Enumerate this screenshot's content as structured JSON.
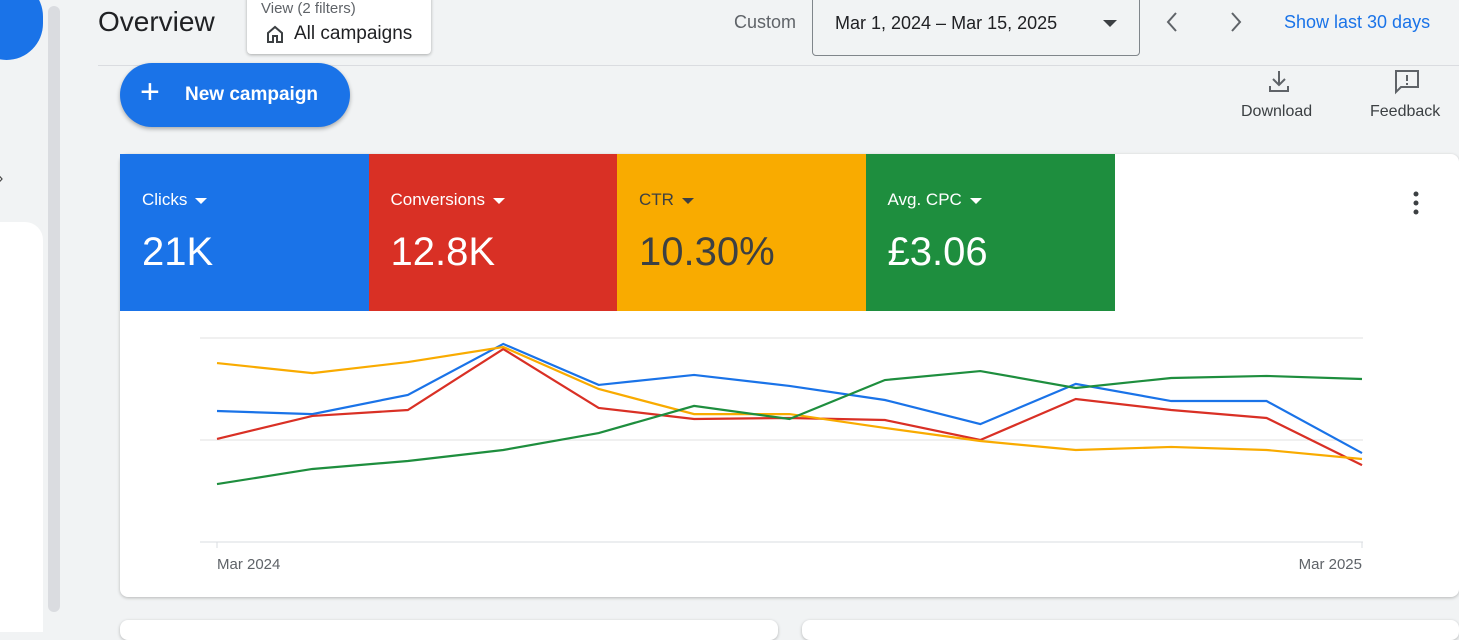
{
  "header": {
    "title": "Overview",
    "view_label": "View (2 filters)",
    "view_value": "All campaigns",
    "range_type": "Custom",
    "date_range": "Mar 1, 2024 – Mar 15, 2025",
    "show_last": "Show last 30 days"
  },
  "toolbar": {
    "new_campaign": "New campaign",
    "download": "Download",
    "feedback": "Feedback"
  },
  "chart_data": {
    "type": "line",
    "categories": [
      "Mar 2024",
      null,
      null,
      null,
      null,
      null,
      null,
      null,
      null,
      null,
      null,
      null,
      "Mar 2025"
    ],
    "ylim": [
      0,
      100
    ],
    "series": [
      {
        "name": "Clicks",
        "total": "21K",
        "color": "#1a73e8",
        "values": [
          64.2,
          62.7,
          72.1,
          97.1,
          77.0,
          81.9,
          76.5,
          69.6,
          57.8,
          77.5,
          69.1,
          69.1,
          43.6
        ]
      },
      {
        "name": "Conversions",
        "total": "12.8K",
        "color": "#d93025",
        "values": [
          50.5,
          61.8,
          64.7,
          94.6,
          65.7,
          60.3,
          60.8,
          59.8,
          50.0,
          70.1,
          64.7,
          60.8,
          37.7
        ]
      },
      {
        "name": "CTR",
        "total": "10.30%",
        "color": "#f9ab00",
        "values": [
          87.7,
          82.8,
          88.2,
          95.6,
          75.0,
          62.7,
          62.7,
          55.9,
          49.5,
          45.1,
          46.6,
          45.1,
          40.7
        ]
      },
      {
        "name": "Avg. CPC",
        "total": "£3.06",
        "color": "#1e8e3e",
        "values": [
          28.4,
          35.8,
          39.7,
          45.1,
          53.4,
          66.7,
          60.3,
          79.4,
          83.8,
          75.5,
          80.4,
          81.4,
          79.9
        ]
      }
    ]
  }
}
